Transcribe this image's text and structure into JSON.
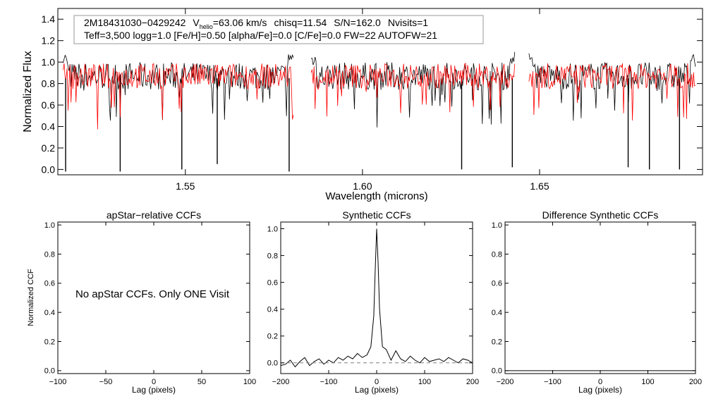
{
  "chart_data": [
    {
      "type": "line",
      "id": "spectrum",
      "title": "",
      "xlabel": "Wavelength (microns)",
      "ylabel": "Normalized Flux",
      "xlim": [
        1.514,
        1.696
      ],
      "ylim": [
        -0.05,
        1.5
      ],
      "xticks": [
        1.55,
        1.6,
        1.65
      ],
      "xtick_labels": [
        "1.55",
        "1.60",
        "1.65"
      ],
      "yticks": [
        0.0,
        0.2,
        0.4,
        0.6,
        0.8,
        1.0,
        1.2,
        1.4
      ],
      "ytick_labels": [
        "0.0",
        "0.2",
        "0.4",
        "0.6",
        "0.8",
        "1.0",
        "1.2",
        "1.4"
      ],
      "annotation": {
        "star_id": "2M18431030−0429242",
        "v_prefix": "V",
        "v_subscript": "helio",
        "v_value": "=63.06 km/s",
        "chisq": "chisq=11.54",
        "snr": "S/N=162.0",
        "nvisits": "Nvisits=1",
        "params": "Teff=3,500 logg=1.0 [Fe/H]=0.50 [alpha/Fe]=0.0 [C/Fe]=0.0 FW=22 AUTOFW=21"
      },
      "chips": [
        [
          1.5155,
          1.5805
        ],
        [
          1.5855,
          1.643
        ],
        [
          1.647,
          1.694
        ]
      ],
      "series": [
        {
          "name": "observed",
          "color": "#000000",
          "continuum": 0.87,
          "scatter": 0.13,
          "deep_lines": [
            {
              "x": 1.5162,
              "depth": -0.02
            },
            {
              "x": 1.5316,
              "depth": -0.02
            },
            {
              "x": 1.549,
              "depth": 0.0
            },
            {
              "x": 1.559,
              "depth": 0.05
            },
            {
              "x": 1.5793,
              "depth": -0.02
            },
            {
              "x": 1.628,
              "depth": 0.0
            },
            {
              "x": 1.6423,
              "depth": 0.02
            },
            {
              "x": 1.675,
              "depth": 0.02
            },
            {
              "x": 1.681,
              "depth": 0.0
            },
            {
              "x": 1.6895,
              "depth": 0.0
            }
          ]
        },
        {
          "name": "model",
          "color": "#ff0000",
          "continuum": 0.87,
          "scatter": 0.12
        }
      ]
    },
    {
      "type": "line",
      "id": "apstar_ccf",
      "title": "apStar−relative CCFs",
      "xlabel": "Lag (pixels)",
      "ylabel": "Normalized CCF",
      "xlim": [
        -100,
        100
      ],
      "ylim": [
        -0.02,
        1.02
      ],
      "xticks": [
        -100,
        -50,
        0,
        50,
        100
      ],
      "xtick_labels": [
        "−100",
        "−50",
        "0",
        "50",
        "100"
      ],
      "yticks": [
        0.0,
        0.2,
        0.4,
        0.6,
        0.8,
        1.0
      ],
      "ytick_labels": [
        "0.0",
        "0.2",
        "0.4",
        "0.6",
        "0.8",
        "1.0"
      ],
      "message": "No apStar CCFs.  Only ONE Visit",
      "series": []
    },
    {
      "type": "line",
      "id": "synthetic_ccf",
      "title": "Synthetic CCFs",
      "xlabel": "Lag (pixels)",
      "ylabel": "",
      "xlim": [
        -200,
        200
      ],
      "ylim": [
        -0.08,
        1.05
      ],
      "xticks": [
        -200,
        -100,
        0,
        100,
        200
      ],
      "xtick_labels": [
        "−200",
        "−100",
        "0",
        "100",
        "200"
      ],
      "yticks": [
        0.0,
        0.2,
        0.4,
        0.6,
        0.8,
        1.0
      ],
      "ytick_labels": [
        "0.0",
        "0.2",
        "0.4",
        "0.6",
        "0.8",
        "1.0"
      ],
      "series": [
        {
          "name": "ccf",
          "color": "#000000",
          "x": [
            -200,
            -190,
            -180,
            -170,
            -160,
            -150,
            -140,
            -130,
            -120,
            -110,
            -100,
            -90,
            -80,
            -70,
            -60,
            -50,
            -40,
            -30,
            -20,
            -12,
            -6,
            -3,
            0,
            3,
            6,
            12,
            20,
            30,
            40,
            50,
            60,
            70,
            80,
            90,
            100,
            110,
            120,
            130,
            140,
            150,
            160,
            170,
            180,
            190,
            200
          ],
          "y": [
            -0.02,
            -0.01,
            0.02,
            -0.03,
            0.01,
            0.04,
            -0.02,
            0.01,
            0.03,
            -0.01,
            0.02,
            0.0,
            0.04,
            0.02,
            0.05,
            0.03,
            0.07,
            0.04,
            0.06,
            0.12,
            0.35,
            0.7,
            1.0,
            0.75,
            0.4,
            0.12,
            0.1,
            0.02,
            0.09,
            0.03,
            0.01,
            0.05,
            0.02,
            0.0,
            0.04,
            0.01,
            0.02,
            0.03,
            0.01,
            0.04,
            0.02,
            0.0,
            0.03,
            0.02,
            0.0
          ]
        },
        {
          "name": "zero",
          "color": "#7f7f7f",
          "dashed": true,
          "x": [
            -200,
            200
          ],
          "y": [
            0,
            0
          ]
        }
      ]
    },
    {
      "type": "line",
      "id": "diff_ccf",
      "title": "Difference Synthetic CCFs",
      "xlabel": "Lag (pixels)",
      "ylabel": "",
      "xlim": [
        -200,
        200
      ],
      "ylim": [
        -0.02,
        1.02
      ],
      "xticks": [
        -200,
        -100,
        0,
        100,
        200
      ],
      "xtick_labels": [
        "−200",
        "−100",
        "0",
        "100",
        "200"
      ],
      "yticks": [
        0.0,
        0.2,
        0.4,
        0.6,
        0.8,
        1.0
      ],
      "ytick_labels": [
        "0.0",
        "0.2",
        "0.4",
        "0.6",
        "0.8",
        "1.0"
      ],
      "series": [
        {
          "name": "difference",
          "color": "#000000",
          "x": [
            -200,
            200
          ],
          "y": [
            0,
            0
          ]
        }
      ]
    }
  ]
}
